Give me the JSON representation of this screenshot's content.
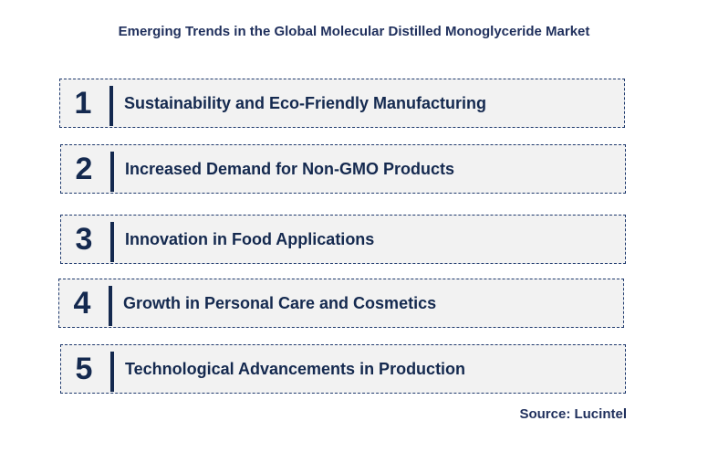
{
  "title": "Emerging Trends in the Global Molecular Distilled Monoglyceride Market",
  "trends": [
    {
      "number": "1",
      "label": "Sustainability and Eco-Friendly Manufacturing"
    },
    {
      "number": "2",
      "label": "Increased Demand for Non-GMO Products"
    },
    {
      "number": "3",
      "label": "Innovation in Food Applications"
    },
    {
      "number": "4",
      "label": "Growth in Personal Care and Cosmetics"
    },
    {
      "number": "5",
      "label": "Technological Advancements in Production"
    }
  ],
  "source": "Source: Lucintel",
  "colors": {
    "text": "#14294f",
    "box_fill": "#f2f2f2",
    "border": "#1f3a6e"
  }
}
